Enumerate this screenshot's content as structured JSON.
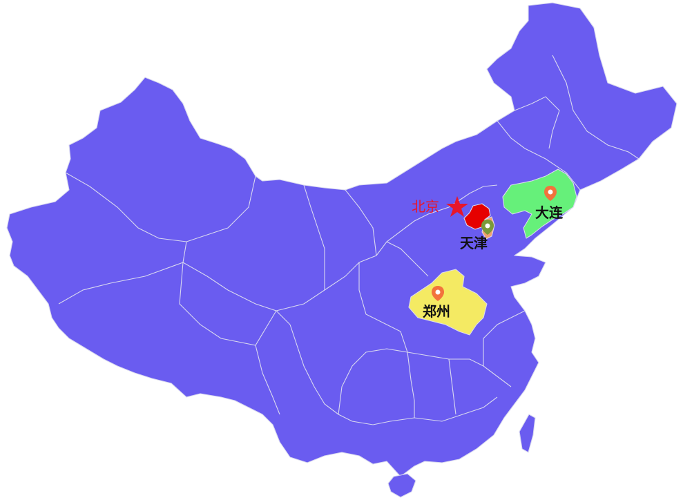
{
  "map": {
    "base_color": "#6a5cf0",
    "border_color": "#d9d9ef",
    "capital": {
      "name": "北京",
      "icon": "star-icon",
      "color": "#e8162b"
    },
    "highlighted_regions": [
      {
        "name": "辽宁",
        "color": "#66f07a"
      },
      {
        "name": "河南",
        "color": "#f4ea63"
      },
      {
        "name": "北京",
        "color": "#e60000"
      },
      {
        "name": "天津",
        "color": "#f0a070"
      }
    ],
    "markers": [
      {
        "label": "大连",
        "icon": "map-pin-icon",
        "pin_color": "#f2733c"
      },
      {
        "label": "天津",
        "icon": "map-pin-icon",
        "pin_color": "#7a9a3a"
      },
      {
        "label": "郑州",
        "icon": "map-pin-icon",
        "pin_color": "#f2733c"
      }
    ]
  }
}
